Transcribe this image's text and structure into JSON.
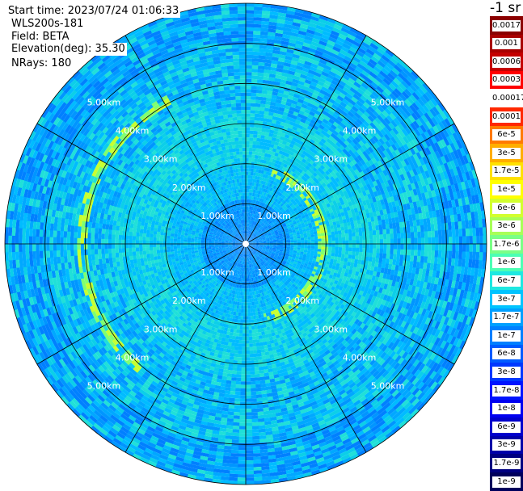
{
  "info": {
    "start_time": "Start time: 2023/07/24 01:06:33",
    "instrument": "WLS200s-181",
    "field": "Field: BETA",
    "elevation": "Elevation(deg): 35.30",
    "nrays": "NRays: 180"
  },
  "colorbar": {
    "unit": "-1 sr",
    "labels": [
      "0.0017",
      "0.001",
      "0.0006",
      "0.0003",
      "0.00017",
      "0.0001",
      "6e-5",
      "3e-5",
      "1.7e-5",
      "1e-5",
      "6e-6",
      "3e-6",
      "1.7e-6",
      "1e-6",
      "6e-7",
      "3e-7",
      "1.7e-7",
      "1e-7",
      "6e-8",
      "3e-8",
      "1.7e-8",
      "1e-8",
      "6e-9",
      "3e-9",
      "1.7e-9",
      "1e-9"
    ],
    "colors": [
      "#8b0000",
      "#a80000",
      "#c40000",
      "#ff0000",
      "#ffffff",
      "#ff2800",
      "#ff7a00",
      "#ffae00",
      "#ffe100",
      "#ffff00",
      "#d2ff2e",
      "#a8ff58",
      "#7aff86",
      "#4cffb4",
      "#1ee8e1",
      "#00c4ff",
      "#00a0ff",
      "#0080ff",
      "#005cff",
      "#0038ff",
      "#0014ff",
      "#0000f0",
      "#0000cc",
      "#0000a8",
      "#000080",
      "#00005c"
    ]
  },
  "chart_data": {
    "type": "heatmap",
    "projection": "polar PPI",
    "nrays": 180,
    "range_unit": "km",
    "max_range_km": 6.0,
    "range_rings_km": [
      1,
      2,
      3,
      4,
      5,
      6
    ],
    "ring_labels": [
      "1.00km",
      "2.00km",
      "3.00km",
      "4.00km",
      "5.00km"
    ],
    "spokes_deg": [
      0,
      30,
      60,
      90,
      120,
      150,
      180,
      210,
      240,
      270,
      300,
      330
    ],
    "field": "BETA",
    "value_scale": "log",
    "value_range": [
      1e-09,
      0.0017
    ],
    "dominant_level": "1e-7",
    "features": [
      {
        "description": "enhanced arc",
        "range_km": [
          1.85,
          2.1
        ],
        "azimuth_deg": [
          20,
          165
        ],
        "level": "3e-6"
      },
      {
        "description": "enhanced arc",
        "range_km": [
          3.95,
          4.2
        ],
        "azimuth_deg": [
          220,
          330
        ],
        "level": "1.7e-6"
      }
    ]
  }
}
